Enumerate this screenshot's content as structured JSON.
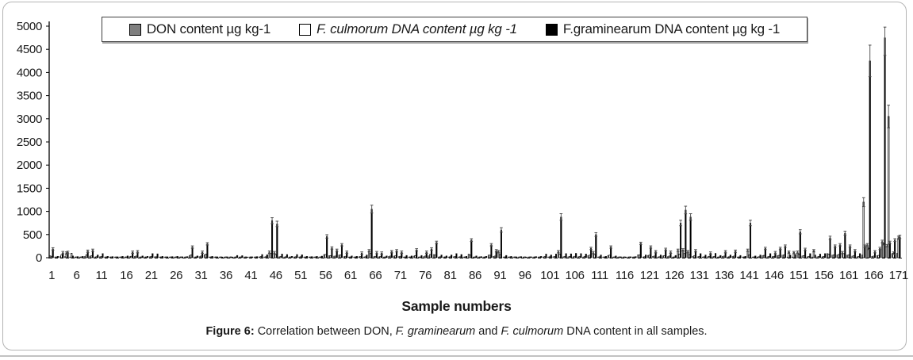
{
  "legend": {
    "items": [
      {
        "label": "DON content µg kg-1",
        "marker_color": "#7f7f7f",
        "italic": false
      },
      {
        "label": "F. culmorum DNA content µg kg -1",
        "marker_color": "#ffffff",
        "italic": true
      },
      {
        "label": "F.graminearum DNA content µg kg -1",
        "marker_color": "#000000",
        "italic": false
      }
    ]
  },
  "axis": {
    "x_title": "Sample numbers"
  },
  "caption": {
    "parts": [
      {
        "text": "Figure 6: ",
        "bold": true
      },
      {
        "text": "Correlation between DON, "
      },
      {
        "text": "F. graminearum",
        "italic": true
      },
      {
        "text": " and "
      },
      {
        "text": "F. culmorum",
        "italic": true
      },
      {
        "text": " DNA content in all samples."
      }
    ]
  },
  "chart_data": {
    "type": "bar",
    "title": "",
    "xlabel": "Sample numbers",
    "ylabel": "",
    "ylim": [
      0,
      5000
    ],
    "grid": false,
    "legend_position": "top",
    "n_samples": 171,
    "yticks": [
      0,
      500,
      1000,
      1500,
      2000,
      2500,
      3000,
      3500,
      4000,
      4500,
      5000
    ],
    "xticks": [
      1,
      6,
      11,
      16,
      21,
      26,
      31,
      36,
      41,
      46,
      51,
      56,
      61,
      66,
      71,
      76,
      81,
      86,
      91,
      96,
      101,
      106,
      111,
      116,
      121,
      126,
      131,
      136,
      141,
      146,
      151,
      156,
      161,
      166,
      171
    ],
    "error_rule": {
      "pct": 0.08,
      "min": 25,
      "show_above": 100,
      "clamp_top": 4980
    },
    "series": [
      {
        "id": "don",
        "name": "DON content µg kg-1",
        "color": "#7f7f7f",
        "stroke": "#000000",
        "values": [
          45,
          10,
          25,
          25,
          15,
          10,
          10,
          30,
          35,
          15,
          20,
          10,
          10,
          5,
          10,
          10,
          25,
          30,
          10,
          10,
          20,
          20,
          10,
          5,
          10,
          10,
          5,
          10,
          50,
          10,
          25,
          65,
          10,
          5,
          5,
          5,
          5,
          10,
          10,
          5,
          5,
          10,
          15,
          15,
          120,
          110,
          20,
          15,
          10,
          15,
          15,
          10,
          5,
          10,
          10,
          70,
          45,
          35,
          60,
          25,
          10,
          10,
          20,
          15,
          150,
          25,
          20,
          10,
          30,
          35,
          25,
          10,
          10,
          35,
          10,
          25,
          40,
          70,
          15,
          10,
          15,
          20,
          15,
          5,
          80,
          10,
          5,
          10,
          60,
          30,
          130,
          10,
          5,
          5,
          5,
          5,
          5,
          5,
          10,
          15,
          15,
          20,
          130,
          20,
          20,
          20,
          20,
          15,
          45,
          110,
          15,
          5,
          50,
          10,
          5,
          5,
          5,
          5,
          65,
          15,
          50,
          30,
          15,
          40,
          25,
          10,
          160,
          170,
          130,
          30,
          20,
          15,
          20,
          20,
          10,
          30,
          15,
          30,
          10,
          5,
          160,
          10,
          15,
          45,
          20,
          25,
          45,
          55,
          15,
          15,
          120,
          40,
          20,
          15,
          20,
          20,
          90,
          55,
          60,
          110,
          55,
          35,
          20,
          60,
          280,
          30,
          45,
          350,
          260,
          90,
          95
        ]
      },
      {
        "id": "culmorum",
        "name": "F. culmorum DNA content µg kg -1",
        "color": "#ffffff",
        "stroke": "#000000",
        "values": [
          30,
          15,
          60,
          100,
          95,
          10,
          15,
          60,
          40,
          20,
          25,
          10,
          10,
          10,
          10,
          15,
          30,
          35,
          15,
          10,
          25,
          20,
          10,
          10,
          10,
          10,
          10,
          10,
          60,
          15,
          35,
          80,
          10,
          10,
          5,
          10,
          5,
          15,
          15,
          5,
          10,
          10,
          25,
          20,
          90,
          70,
          25,
          20,
          10,
          20,
          20,
          10,
          10,
          10,
          15,
          70,
          45,
          35,
          60,
          30,
          15,
          10,
          25,
          20,
          90,
          30,
          25,
          15,
          35,
          40,
          30,
          15,
          15,
          45,
          15,
          35,
          70,
          60,
          20,
          15,
          20,
          25,
          20,
          10,
          60,
          15,
          10,
          10,
          55,
          35,
          70,
          15,
          10,
          10,
          10,
          5,
          10,
          10,
          10,
          25,
          20,
          25,
          80,
          25,
          25,
          30,
          25,
          25,
          55,
          70,
          20,
          10,
          55,
          15,
          10,
          5,
          10,
          10,
          60,
          20,
          55,
          35,
          20,
          45,
          35,
          15,
          80,
          90,
          70,
          40,
          25,
          20,
          30,
          25,
          15,
          35,
          20,
          35,
          15,
          10,
          60,
          15,
          20,
          50,
          25,
          30,
          50,
          60,
          120,
          110,
          80,
          45,
          25,
          150,
          25,
          25,
          80,
          60,
          70,
          90,
          60,
          40,
          25,
          1200,
          200,
          35,
          50,
          300,
          3050,
          100,
          430
        ]
      },
      {
        "id": "graminearum",
        "name": "F.graminearum DNA content µg kg -1",
        "color": "#000000",
        "stroke": "#000000",
        "values": [
          190,
          30,
          110,
          115,
          40,
          25,
          30,
          140,
          160,
          60,
          90,
          30,
          25,
          20,
          30,
          40,
          120,
          130,
          40,
          30,
          90,
          85,
          30,
          20,
          25,
          30,
          20,
          25,
          230,
          40,
          120,
          300,
          30,
          20,
          15,
          20,
          15,
          50,
          45,
          15,
          20,
          25,
          70,
          65,
          800,
          730,
          80,
          70,
          30,
          70,
          65,
          30,
          25,
          30,
          35,
          460,
          210,
          160,
          280,
          120,
          40,
          30,
          100,
          60,
          1050,
          110,
          100,
          40,
          130,
          150,
          120,
          50,
          40,
          170,
          50,
          120,
          190,
          330,
          60,
          40,
          60,
          90,
          70,
          30,
          380,
          40,
          25,
          30,
          280,
          150,
          600,
          50,
          30,
          20,
          25,
          15,
          20,
          25,
          30,
          80,
          60,
          80,
          880,
          90,
          85,
          95,
          90,
          80,
          200,
          500,
          60,
          30,
          230,
          40,
          20,
          15,
          20,
          25,
          310,
          60,
          230,
          130,
          60,
          180,
          120,
          50,
          750,
          1030,
          880,
          150,
          90,
          60,
          100,
          95,
          50,
          130,
          60,
          140,
          50,
          30,
          750,
          40,
          60,
          200,
          90,
          110,
          200,
          250,
          60,
          70,
          560,
          180,
          90,
          60,
          80,
          90,
          430,
          250,
          280,
          530,
          250,
          150,
          90,
          250,
          4250,
          130,
          200,
          4750,
          330,
          380,
          450
        ]
      }
    ]
  }
}
